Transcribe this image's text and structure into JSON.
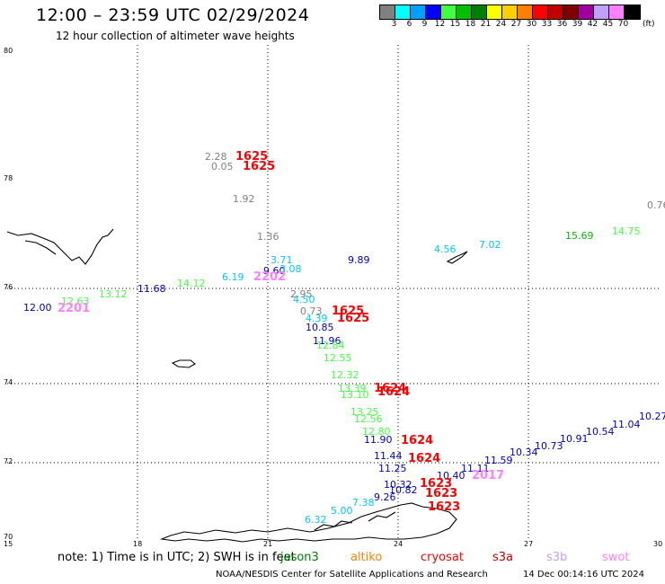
{
  "title": "12:00 – 23:59 UTC 02/29/2024",
  "subtitle": "12 hour collection of altimeter wave heights",
  "legend": {
    "unit": "(ft)",
    "labels": [
      "3",
      "6",
      "9",
      "12",
      "15",
      "18",
      "21",
      "24",
      "27",
      "30",
      "33",
      "36",
      "39",
      "42",
      "45",
      "70"
    ],
    "colors": [
      "#808080",
      "#00ffff",
      "#00a0ff",
      "#0000ff",
      "#40ff40",
      "#00c000",
      "#008000",
      "#ffff00",
      "#ffd000",
      "#ff8000",
      "#ff0000",
      "#c00000",
      "#800000",
      "#a000a0",
      "#c0a0ff",
      "#ff80ff",
      "#000000"
    ]
  },
  "axes": {
    "y_ticks": [
      "80",
      "78",
      "76",
      "74",
      "72",
      "70"
    ],
    "x_ticks": [
      "15",
      "18",
      "21",
      "24",
      "27",
      "30"
    ]
  },
  "observations": [
    {
      "v": "2.28",
      "c": "#808080"
    },
    {
      "v": "0.05",
      "c": "#808080"
    },
    {
      "v": "1.92",
      "c": "#808080"
    },
    {
      "v": "0.76",
      "c": "#808080"
    },
    {
      "v": "1.36",
      "c": "#808080"
    },
    {
      "v": "3.71",
      "c": "#00c8ff"
    },
    {
      "v": "9.60",
      "c": "#0000c0"
    },
    {
      "v": "3.08",
      "c": "#00c8ff"
    },
    {
      "v": "6.19",
      "c": "#00c8ff"
    },
    {
      "v": "9.89",
      "c": "#0000c0"
    },
    {
      "v": "4.56",
      "c": "#00c8ff"
    },
    {
      "v": "7.02",
      "c": "#00c8ff"
    },
    {
      "v": "15.69",
      "c": "#00c000"
    },
    {
      "v": "14.75",
      "c": "#40ff40"
    },
    {
      "v": "12.00",
      "c": "#0000c0"
    },
    {
      "v": "12.63",
      "c": "#40ff40"
    },
    {
      "v": "13.12",
      "c": "#40ff40"
    },
    {
      "v": "11.68",
      "c": "#0000c0"
    },
    {
      "v": "14.12",
      "c": "#40ff40"
    },
    {
      "v": "2.95",
      "c": "#808080"
    },
    {
      "v": "4.50",
      "c": "#00c8ff"
    },
    {
      "v": "0.73",
      "c": "#808080"
    },
    {
      "v": "4.39",
      "c": "#00c8ff"
    },
    {
      "v": "10.85",
      "c": "#0000c0"
    },
    {
      "v": "11.96",
      "c": "#0000c0"
    },
    {
      "v": "12.84",
      "c": "#40ff40"
    },
    {
      "v": "12.55",
      "c": "#40ff40"
    },
    {
      "v": "12.32",
      "c": "#40ff40"
    },
    {
      "v": "13.39",
      "c": "#40ff40"
    },
    {
      "v": "13.10",
      "c": "#40ff40"
    },
    {
      "v": "13.25",
      "c": "#40ff40"
    },
    {
      "v": "12.56",
      "c": "#40ff40"
    },
    {
      "v": "12.80",
      "c": "#40ff40"
    },
    {
      "v": "11.90",
      "c": "#0000c0"
    },
    {
      "v": "11.44",
      "c": "#0000c0"
    },
    {
      "v": "11.25",
      "c": "#0000c0"
    },
    {
      "v": "10.32",
      "c": "#0000c0"
    },
    {
      "v": "10.82",
      "c": "#0000c0"
    },
    {
      "v": "9.26",
      "c": "#0000c0"
    },
    {
      "v": "7.38",
      "c": "#00c8ff"
    },
    {
      "v": "5.00",
      "c": "#00c8ff"
    },
    {
      "v": "6.32",
      "c": "#00c8ff"
    },
    {
      "v": "10.40",
      "c": "#0000c0"
    },
    {
      "v": "11.11",
      "c": "#0000c0"
    },
    {
      "v": "11.59",
      "c": "#0000c0"
    },
    {
      "v": "10.34",
      "c": "#0000c0"
    },
    {
      "v": "10.73",
      "c": "#0000c0"
    },
    {
      "v": "10.91",
      "c": "#0000c0"
    },
    {
      "v": "10.54",
      "c": "#0000c0"
    },
    {
      "v": "11.04",
      "c": "#0000c0"
    },
    {
      "v": "10.27",
      "c": "#0000c0"
    }
  ],
  "pass_times": [
    {
      "v": "1625",
      "c": "#ff0000"
    },
    {
      "v": "1625",
      "c": "#ff0000"
    },
    {
      "v": "2202",
      "c": "#ff80ff"
    },
    {
      "v": "2201",
      "c": "#ff80ff"
    },
    {
      "v": "1625",
      "c": "#ff0000"
    },
    {
      "v": "1625",
      "c": "#ff0000"
    },
    {
      "v": "1624",
      "c": "#ff0000"
    },
    {
      "v": "1624",
      "c": "#ff0000"
    },
    {
      "v": "1624",
      "c": "#ff0000"
    },
    {
      "v": "1624",
      "c": "#ff0000"
    },
    {
      "v": "1623",
      "c": "#ff0000"
    },
    {
      "v": "1623",
      "c": "#ff0000"
    },
    {
      "v": "1623",
      "c": "#ff0000"
    },
    {
      "v": "2017",
      "c": "#ff80ff"
    }
  ],
  "footer": {
    "note": "note:  1) Time is in UTC;  2) SWH is in feet",
    "satellites": [
      {
        "name": "jason3",
        "color": "#008000"
      },
      {
        "name": "altiko",
        "color": "#ff8000"
      },
      {
        "name": "cryosat",
        "color": "#ff0000"
      },
      {
        "name": "s3a",
        "color": "#c00000"
      },
      {
        "name": "s3b",
        "color": "#c0a0ff"
      },
      {
        "name": "swot",
        "color": "#ff80ff"
      }
    ],
    "credit": "NOAA/NESDIS Center for Satellite Applications and Research",
    "timestamp": "14 Dec 00:14:16 UTC 2024"
  }
}
